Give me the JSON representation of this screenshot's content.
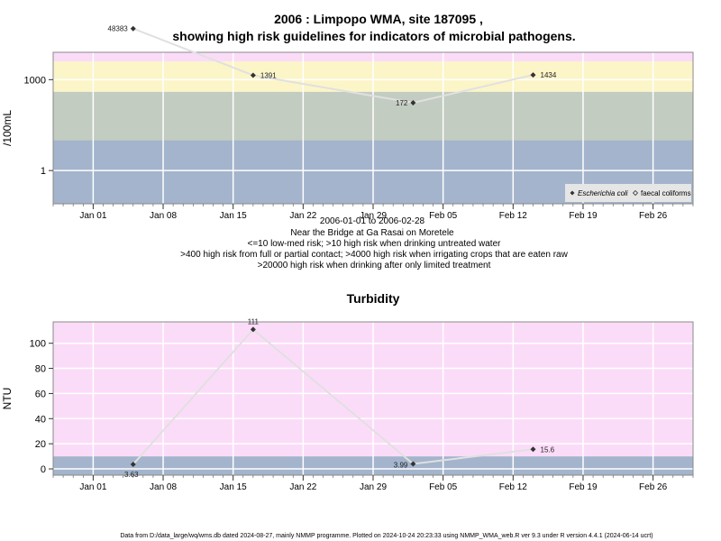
{
  "page": {
    "title_line1": "2006 : Limpopo WMA, site 187095 ,",
    "title_line2": "showing high risk guidelines for indicators of microbial pathogens.",
    "footer": "Data from D:/data_large/wq/wms.db dated 2024-08-27, mainly NMMP programme. Plotted on 2024-10-24 20:23:33 using NMMP_WMA_web.R ver 9.3 under R version 4.4.1 (2024-06-14 ucrt)"
  },
  "micro_notes": [
    "2006-01-01 to 2006-02-28",
    "Near the Bridge at Ga Rasai on Moretele",
    "<=10 low-med risk; >10 high risk when drinking untreated water",
    ">400 high risk from full or partial contact; >4000 high risk when irrigating crops that are eaten raw",
    ">20000 high risk when drinking after only limited treatment"
  ],
  "colors": {
    "band_blue": "#a3b4cc",
    "band_green": "#c3ccc0",
    "band_yellow": "#fcf5c8",
    "band_pink": "#fbdcf8",
    "band_red": "#f9b2c0",
    "line": "#e0e0e0",
    "marker": "#333333"
  },
  "chart_data": [
    {
      "type": "line",
      "title": "",
      "xlabel": "",
      "ylabel": "/100mL",
      "yscale": "log",
      "ylim": [
        0.08,
        8000
      ],
      "xlim": [
        "2005-12-28",
        "2006-03-02"
      ],
      "x_ticks": [
        "2006-01-01",
        "2006-01-08",
        "2006-01-15",
        "2006-01-22",
        "2006-01-29",
        "2006-02-05",
        "2006-02-12",
        "2006-02-19",
        "2006-02-26"
      ],
      "x_tick_labels": [
        "Jan 01",
        "Jan 08",
        "Jan 15",
        "Jan 22",
        "Jan 29",
        "Feb 05",
        "Feb 12",
        "Feb 19",
        "Feb 26"
      ],
      "y_ticks": [
        1,
        1000
      ],
      "y_tick_labels": [
        "1",
        "1000"
      ],
      "bands": [
        {
          "from": 0.08,
          "to": 10,
          "color": "band_blue"
        },
        {
          "from": 10,
          "to": 400,
          "color": "band_green"
        },
        {
          "from": 400,
          "to": 4000,
          "color": "band_yellow"
        },
        {
          "from": 4000,
          "to": 20000,
          "color": "band_pink"
        },
        {
          "from": 20000,
          "to": 8000,
          "color": "band_red"
        }
      ],
      "series": [
        {
          "name": "Escherichia coli",
          "x": [
            "2006-01-05",
            "2006-01-17",
            "2006-02-02",
            "2006-02-14"
          ],
          "y": [
            48383,
            1391,
            172,
            1434
          ],
          "labels": [
            "48383",
            "1391",
            "172",
            "1434"
          ]
        }
      ],
      "legend": {
        "position": "bottom-right",
        "entries": [
          "Escherichia coli",
          "faecal coliforms"
        ]
      },
      "grid": true
    },
    {
      "type": "line",
      "title": "Turbidity",
      "xlabel": "",
      "ylabel": "NTU",
      "yscale": "linear",
      "ylim": [
        -5,
        117
      ],
      "xlim": [
        "2005-12-28",
        "2006-03-02"
      ],
      "x_ticks": [
        "2006-01-01",
        "2006-01-08",
        "2006-01-15",
        "2006-01-22",
        "2006-01-29",
        "2006-02-05",
        "2006-02-12",
        "2006-02-19",
        "2006-02-26"
      ],
      "x_tick_labels": [
        "Jan 01",
        "Jan 08",
        "Jan 15",
        "Jan 22",
        "Jan 29",
        "Feb 05",
        "Feb 12",
        "Feb 19",
        "Feb 26"
      ],
      "y_ticks": [
        0,
        20,
        40,
        60,
        80,
        100
      ],
      "y_tick_labels": [
        "0",
        "20",
        "40",
        "60",
        "80",
        "100"
      ],
      "bands": [
        {
          "from": -5,
          "to": 10,
          "color": "band_blue"
        },
        {
          "from": 10,
          "to": 117,
          "color": "band_pink"
        }
      ],
      "series": [
        {
          "name": "",
          "x": [
            "2006-01-05",
            "2006-01-17",
            "2006-02-02",
            "2006-02-14"
          ],
          "y": [
            3.63,
            111,
            3.99,
            15.6
          ],
          "labels": [
            "3.63",
            "111",
            "3.99",
            "15.6"
          ]
        }
      ],
      "grid": true
    }
  ]
}
